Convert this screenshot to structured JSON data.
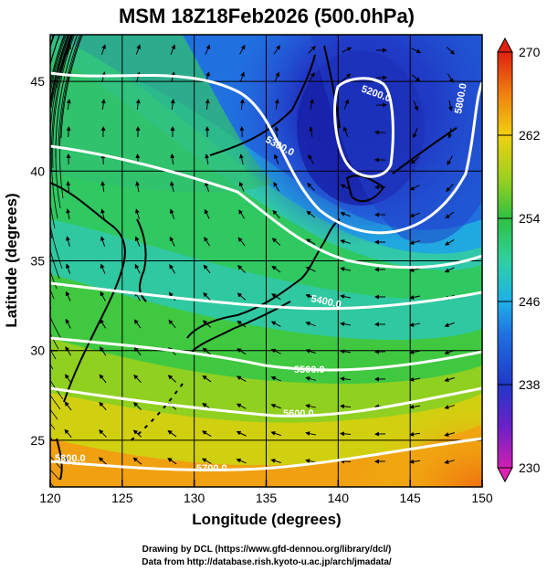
{
  "title": "MSM 18Z18Feb2026 (500.0hPa)",
  "xlabel": "Longitude (degrees)",
  "ylabel": "Latitude  (degrees)",
  "xticks": [
    "120",
    "125",
    "130",
    "135",
    "140",
    "145",
    "150"
  ],
  "yticks": [
    "25",
    "30",
    "35",
    "40",
    "45"
  ],
  "colorbar": {
    "ticks": [
      "230",
      "238",
      "246",
      "254",
      "262",
      "270"
    ],
    "min": 230,
    "max": 270
  },
  "contour_labels": [
    "5200.0",
    "5300.0",
    "5400.0",
    "5500.0",
    "5600.0",
    "5700.0",
    "5800.0",
    "5800.0"
  ],
  "credits": [
    "Drawing by DCL (https://www.gfd-dennou.org/library/dcl/)",
    "Data from http://database.rish.kyoto-u.ac.jp/arch/jmadata/"
  ],
  "chart_data": {
    "type": "heatmap",
    "title": "MSM 18Z18Feb2026 (500.0hPa)",
    "xlabel": "Longitude (degrees)",
    "ylabel": "Latitude  (degrees)",
    "xlim": [
      120,
      150
    ],
    "ylim": [
      22.4,
      47.6
    ],
    "color_range": [
      230,
      270
    ],
    "fields": "temperature (color shading), geopotential height (white contours), wind (streamlines)",
    "contour_levels": [
      5200,
      5300,
      5400,
      5500,
      5600,
      5700,
      5800
    ],
    "low_center": {
      "lon": 143,
      "lat": 43
    }
  }
}
